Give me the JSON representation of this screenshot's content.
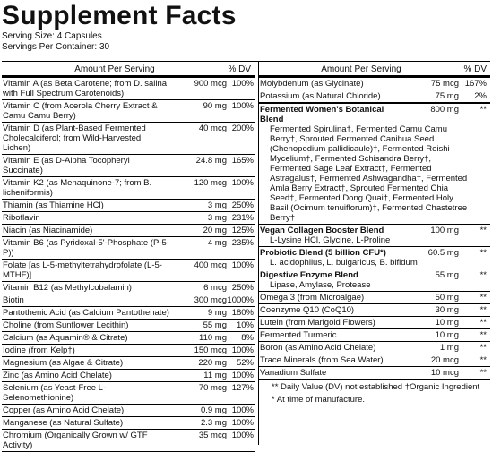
{
  "title": "Supplement Facts",
  "serving_size": "Serving Size: 4 Capsules",
  "servings_per_container": "Servings Per Container: 30",
  "columns": {
    "amount_per_serving": "Amount Per Serving",
    "dv": "% DV"
  },
  "left_rows": [
    {
      "name": "Vitamin A (as Beta Carotene; from D. salina with Full Spectrum Carotenoids)",
      "amount": "900 mcg",
      "dv": "100%"
    },
    {
      "name": "Vitamin C (from Acerola Cherry Extract & Camu Camu Berry)",
      "amount": "90 mg",
      "dv": "100%"
    },
    {
      "name": "Vitamin D (as Plant-Based Fermented Cholecalciferol; from Wild-Harvested Lichen)",
      "amount": "40 mcg",
      "dv": "200%"
    },
    {
      "name": "Vitamin E (as D-Alpha Tocopheryl Succinate)",
      "amount": "24.8 mg",
      "dv": "165%"
    },
    {
      "name": "Vitamin K2 (as Menaquinone-7; from B. licheniformis)",
      "amount": "120 mcg",
      "dv": "100%"
    },
    {
      "name": "Thiamin (as Thiamine HCl)",
      "amount": "3 mg",
      "dv": "250%"
    },
    {
      "name": "Riboflavin",
      "amount": "3 mg",
      "dv": "231%"
    },
    {
      "name": "Niacin (as Niacinamide)",
      "amount": "20 mg",
      "dv": "125%"
    },
    {
      "name": "Vitamin B6 (as Pyridoxal-5'-Phosphate (P-5-P))",
      "amount": "4 mg",
      "dv": "235%"
    },
    {
      "name": "Folate [as L-5-methyltetrahydrofolate (L-5-MTHF)]",
      "amount": "400 mcg",
      "dv": "100%"
    },
    {
      "name": "Vitamin B12 (as Methylcobalamin)",
      "amount": "6 mcg",
      "dv": "250%"
    },
    {
      "name": "Biotin",
      "amount": "300 mcg",
      "dv": "1000%"
    },
    {
      "name": "Pantothenic Acid (as Calcium Pantothenate)",
      "amount": "9 mg",
      "dv": "180%"
    },
    {
      "name": "Choline (from Sunflower Lecithin)",
      "amount": "55 mg",
      "dv": "10%"
    },
    {
      "name": "Calcium (as Aquamin® & Citrate)",
      "amount": "110 mg",
      "dv": "8%"
    },
    {
      "name": "Iodine (from Kelp†)",
      "amount": "150 mcg",
      "dv": "100%"
    },
    {
      "name": "Magnesium (as Algae & Citrate)",
      "amount": "220 mg",
      "dv": "52%"
    },
    {
      "name": "Zinc (as Amino Acid Chelate)",
      "amount": "11 mg",
      "dv": "100%"
    },
    {
      "name": "Selenium (as Yeast-Free L-Selenomethionine)",
      "amount": "70 mcg",
      "dv": "127%"
    },
    {
      "name": "Copper (as Amino Acid Chelate)",
      "amount": "0.9 mg",
      "dv": "100%"
    },
    {
      "name": "Manganese (as Natural Sulfate)",
      "amount": "2.3 mg",
      "dv": "100%"
    },
    {
      "name": "Chromium (Organically Grown w/ GTF Activity)",
      "amount": "35 mcg",
      "dv": "100%"
    }
  ],
  "right_top_rows": [
    {
      "name": "Molybdenum (as Glycinate)",
      "amount": "75 mcg",
      "dv": "167%"
    },
    {
      "name": "Potassium (as Natural Chloride)",
      "amount": "75 mg",
      "dv": "2%"
    }
  ],
  "blends": [
    {
      "name": "Fermented Women's Botanical Blend",
      "amount": "800 mg",
      "dv": "**",
      "text": "Fermented Spirulina†, Fermented Camu Camu Berry†, Sprouted Fermented Canihua Seed (Chenopodium pallidicaule)†, Fermented Reishi Mycelium†, Fermented Schisandra Berry†, Fermented Sage Leaf Extract†, Fermented Astragalus†, Fermented Ashwagandha†, Fermented Amla Berry Extract†, Sprouted Fermented Chia Seed†, Fermented Dong Quai†, Fermented Holy Basil (Ocimum tenuiflorum)†, Fermented Chastetree Berry†"
    },
    {
      "name": "Vegan Collagen Booster Blend",
      "amount": "100 mg",
      "dv": "**",
      "text": "L-Lysine HCl, Glycine, L-Proline"
    },
    {
      "name": "Probiotic Blend (5 billion CFU*)",
      "amount": "60.5 mg",
      "dv": "**",
      "text": "L. acidophilus, L. bulgaricus, B. bifidum"
    },
    {
      "name": "Digestive Enzyme Blend",
      "amount": "55 mg",
      "dv": "**",
      "text": "Lipase, Amylase, Protease"
    }
  ],
  "right_bottom_rows": [
    {
      "name": "Omega 3 (from Microalgae)",
      "amount": "50 mg",
      "dv": "**"
    },
    {
      "name": "Coenzyme Q10 (CoQ10)",
      "amount": "30 mg",
      "dv": "**"
    },
    {
      "name": "Lutein (from Marigold Flowers)",
      "amount": "10 mg",
      "dv": "**"
    },
    {
      "name": "Fermented Turmeric",
      "amount": "10 mg",
      "dv": "**"
    },
    {
      "name": "Boron (as Amino Acid Chelate)",
      "amount": "1 mg",
      "dv": "**"
    },
    {
      "name": "Trace Minerals (from Sea Water)",
      "amount": "20 mcg",
      "dv": "**"
    },
    {
      "name": "Vanadium Sulfate",
      "amount": "10 mcg",
      "dv": "**"
    }
  ],
  "footnotes": [
    "** Daily Value (DV) not established †Organic Ingredient",
    "* At time of manufacture."
  ]
}
